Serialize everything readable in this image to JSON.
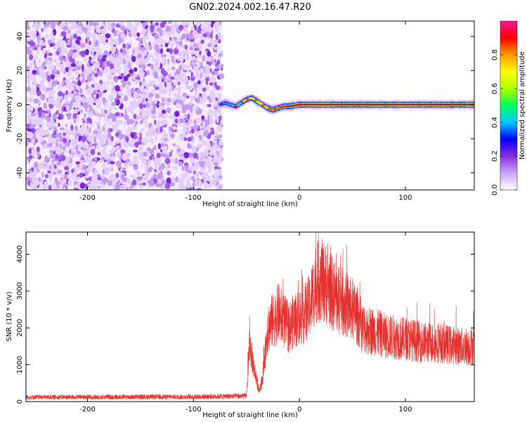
{
  "title": "GN02.2024.002.16.47.R20",
  "chart_data": [
    {
      "type": "heatmap",
      "xlabel": "Height of straight line (km)",
      "ylabel": "Frequency (Hz)",
      "xlim": [
        -258,
        165
      ],
      "ylim": [
        -50,
        49
      ],
      "xticks": [
        -200,
        -100,
        0,
        100
      ],
      "yticks": [
        -40,
        -20,
        0,
        20,
        40
      ],
      "colorbar": {
        "label": "Normalized spectral amplitude",
        "range": [
          0,
          1
        ],
        "ticks": [
          "0.0",
          "0.2",
          "0.4",
          "0.6",
          "0.8"
        ],
        "colors": [
          "#ffffff",
          "#c9a8f5",
          "#8a2be2",
          "#0000ff",
          "#00c8ff",
          "#00ff60",
          "#b0ff00",
          "#ffff00",
          "#ff9a00",
          "#ff0000",
          "#ff1493"
        ]
      },
      "noise_region": {
        "x_range": [
          -258,
          -73
        ],
        "freq_range": [
          -50,
          49
        ],
        "typical_amplitude": [
          0.02,
          0.15
        ]
      },
      "signal_track": {
        "x": [
          -75,
          -70,
          -65,
          -60,
          -55,
          -50,
          -45,
          -40,
          -35,
          -30,
          -25,
          -20,
          -15,
          -10,
          0,
          20,
          40,
          60,
          80,
          100,
          120,
          140,
          165
        ],
        "freq": [
          0,
          1,
          0,
          -1,
          1,
          3,
          4,
          2,
          0,
          -2,
          -3,
          -2,
          -1,
          -1,
          0,
          0,
          0,
          0,
          0,
          0,
          0,
          0,
          0
        ],
        "amplitude": [
          0.3,
          0.35,
          0.4,
          0.45,
          0.5,
          0.55,
          0.6,
          0.65,
          0.7,
          0.75,
          0.8,
          0.8,
          0.85,
          0.85,
          0.9,
          0.95,
          0.9,
          0.9,
          0.9,
          0.95,
          0.9,
          0.9,
          0.9
        ]
      }
    },
    {
      "type": "line",
      "xlabel": "Height of straight line (km)",
      "ylabel": "SNR (10 * v/v)",
      "xlim": [
        -258,
        165
      ],
      "ylim": [
        0,
        4600
      ],
      "xticks": [
        -200,
        -100,
        0,
        100
      ],
      "yticks": [
        0,
        1000,
        2000,
        3000,
        4000
      ],
      "color": "#e8312d",
      "envelope": {
        "x": [
          -258,
          -100,
          -50,
          -47,
          -45,
          -42,
          -38,
          -35,
          -30,
          -25,
          -20,
          -15,
          -10,
          -5,
          0,
          5,
          10,
          15,
          20,
          25,
          30,
          35,
          40,
          45,
          50,
          55,
          60,
          70,
          80,
          90,
          100,
          110,
          120,
          130,
          140,
          150,
          165
        ],
        "y": [
          120,
          130,
          150,
          1600,
          1200,
          800,
          300,
          600,
          2000,
          2200,
          2400,
          2200,
          2000,
          2200,
          2300,
          2400,
          2600,
          3200,
          3300,
          3200,
          3000,
          2800,
          2700,
          2600,
          2500,
          2300,
          2000,
          1900,
          1800,
          1750,
          1700,
          1650,
          1600,
          1600,
          1550,
          1500,
          1500
        ]
      }
    }
  ]
}
